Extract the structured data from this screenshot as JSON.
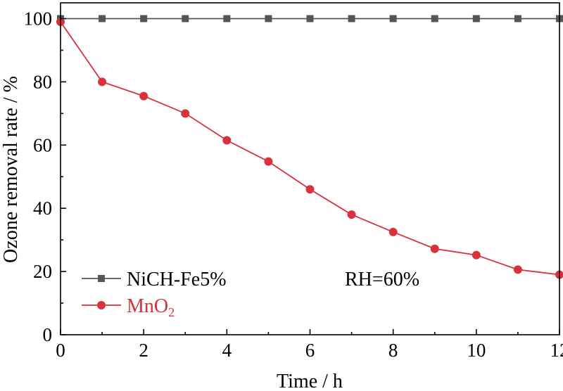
{
  "chart_data": {
    "type": "line",
    "xlabel": "Time / h",
    "ylabel": "Ozone removal rate / %",
    "xlim": [
      0,
      12
    ],
    "ylim": [
      0,
      105
    ],
    "xticks": [
      0,
      2,
      4,
      6,
      8,
      10,
      12
    ],
    "yticks": [
      0,
      20,
      40,
      60,
      80,
      100
    ],
    "grid": false,
    "legend_position": "bottom-left",
    "annotation": "RH=60%",
    "series": [
      {
        "name": "NiCH-Fe5%",
        "color": "#555555",
        "marker": "square",
        "x": [
          0,
          1,
          2,
          3,
          4,
          5,
          6,
          7,
          8,
          9,
          10,
          11,
          12
        ],
        "y": [
          100,
          100,
          100,
          100,
          100,
          100,
          100,
          100,
          100,
          100,
          100,
          100,
          100
        ]
      },
      {
        "name": "MnO",
        "name_subscript": "2",
        "color": "#d8323c",
        "marker": "circle",
        "x": [
          0,
          1,
          2,
          3,
          4,
          5,
          6,
          7,
          8,
          9,
          10,
          11,
          12
        ],
        "y": [
          99,
          80,
          75.5,
          70,
          61.5,
          54.8,
          46,
          38,
          32.5,
          27.2,
          25.2,
          20.6,
          19
        ]
      }
    ]
  }
}
